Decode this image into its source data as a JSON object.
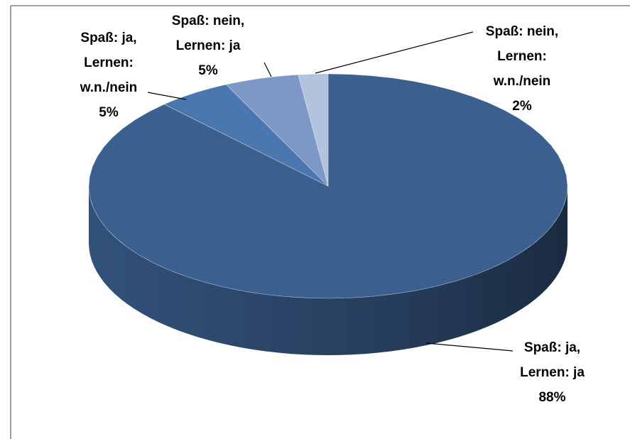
{
  "chart_data": {
    "type": "pie",
    "categories": [
      "Spaß: ja, Lernen: ja",
      "Spaß: ja, Lernen: w.n./nein",
      "Spaß: nein, Lernen: ja",
      "Spaß: nein, Lernen: w.n./nein"
    ],
    "values": [
      88,
      5,
      5,
      2
    ],
    "value_labels": [
      "88%",
      "5%",
      "5%",
      "2%"
    ],
    "colors": [
      "#3b6090",
      "#4a77b0",
      "#7b98c6",
      "#b3c3de"
    ]
  }
}
